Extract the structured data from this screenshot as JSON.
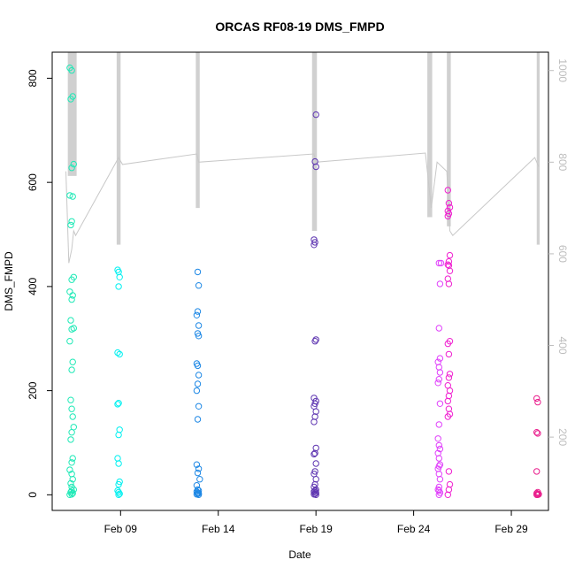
{
  "chart_data": {
    "type": "scatter",
    "title": "ORCAS RF08-19 DMS_FMPD",
    "xlabel": "Date",
    "ylabel": "DMS_FMPD",
    "x_ticks": [
      "Feb 09",
      "Feb 14",
      "Feb 19",
      "Feb 24",
      "Feb 29"
    ],
    "x_tick_days": [
      9,
      14,
      19,
      24,
      29
    ],
    "xlim_days": [
      5.5,
      30.9
    ],
    "y_ticks": [
      0,
      200,
      400,
      600,
      800
    ],
    "ylim": [
      -30,
      850
    ],
    "y2_ticks": [
      200,
      400,
      600,
      800,
      1000
    ],
    "y2_range_at_ylim": [
      40,
      1040
    ],
    "colors": {
      "axis": "#000000",
      "secondary_axis": "#bdbdbd",
      "trace": "#c8c8c8"
    },
    "secondary_trace": {
      "days": [
        6.2,
        6.35,
        6.5,
        6.6,
        6.7,
        8.9,
        9.1,
        12.9,
        13.0,
        18.9,
        19.0,
        24.6,
        24.9,
        25.2,
        25.7,
        25.85,
        26.0,
        30.2,
        30.4
      ],
      "values": [
        780,
        580,
        610,
        650,
        640,
        810,
        795,
        818,
        800,
        818,
        800,
        820,
        700,
        800,
        780,
        650,
        640,
        810,
        790
      ]
    },
    "flight_tracks": [
      {
        "day_start": 6.3,
        "day_end": 6.75,
        "top": 40,
        "bottom": 770
      },
      {
        "day_start": 8.8,
        "day_end": 9.0,
        "top": 40,
        "bottom": 620
      },
      {
        "day_start": 12.85,
        "day_end": 13.05,
        "top": 40,
        "bottom": 700
      },
      {
        "day_start": 18.8,
        "day_end": 19.05,
        "top": 40,
        "bottom": 650
      },
      {
        "day_start": 24.7,
        "day_end": 24.95,
        "top": 40,
        "bottom": 680
      },
      {
        "day_start": 25.7,
        "day_end": 25.9,
        "top": 40,
        "bottom": 660
      },
      {
        "day_start": 30.3,
        "day_end": 30.45,
        "top": 40,
        "bottom": 620
      }
    ],
    "series": [
      {
        "color": "#1de9b6",
        "x": [
          6.4,
          6.5,
          6.55,
          6.45,
          6.6,
          6.5,
          6.4,
          6.55,
          6.5,
          6.45,
          6.6,
          6.5,
          6.4,
          6.55,
          6.5,
          6.45,
          6.6,
          6.5,
          6.4,
          6.55,
          6.5,
          6.45,
          6.5,
          6.55,
          6.6,
          6.5,
          6.45,
          6.55,
          6.5,
          6.4,
          6.5,
          6.55,
          6.45,
          6.5,
          6.6,
          6.5,
          6.45,
          6.55,
          6.5,
          6.4
        ],
        "y": [
          820,
          815,
          765,
          760,
          635,
          628,
          575,
          573,
          525,
          518,
          418,
          413,
          390,
          383,
          375,
          335,
          320,
          318,
          295,
          255,
          240,
          182,
          165,
          150,
          130,
          120,
          106,
          70,
          62,
          48,
          40,
          30,
          22,
          15,
          10,
          8,
          5,
          3,
          1,
          0
        ]
      },
      {
        "color": "#00f0f0",
        "x": [
          8.85,
          8.9,
          8.95,
          8.9,
          8.85,
          8.95,
          8.9,
          8.85,
          8.95,
          8.9,
          8.85,
          8.9,
          8.95,
          8.9,
          8.85,
          8.9,
          8.95,
          8.9
        ],
        "y": [
          432,
          428,
          418,
          400,
          273,
          270,
          176,
          174,
          125,
          115,
          70,
          60,
          25,
          20,
          8,
          5,
          2,
          0
        ]
      },
      {
        "color": "#1e88e5",
        "x": [
          12.95,
          13.0,
          12.95,
          12.9,
          13.0,
          12.95,
          13.0,
          12.9,
          12.95,
          13.0,
          12.95,
          12.9,
          13.0,
          12.95,
          12.9,
          13.0,
          12.95,
          13.05,
          12.9,
          12.95,
          13.0,
          12.9,
          12.95,
          13.0,
          12.95,
          12.9,
          13.0
        ],
        "y": [
          428,
          402,
          352,
          345,
          325,
          310,
          305,
          252,
          248,
          230,
          213,
          200,
          170,
          145,
          58,
          50,
          42,
          30,
          18,
          10,
          8,
          6,
          4,
          3,
          2,
          1,
          0
        ]
      },
      {
        "color": "#5e35b1",
        "x": [
          19.0,
          18.95,
          19.0,
          18.9,
          18.95,
          18.9,
          19.0,
          18.95,
          18.9,
          19.0,
          18.95,
          18.9,
          19.0,
          18.95,
          18.9,
          19.0,
          18.95,
          18.9,
          19.0,
          18.95,
          18.9,
          19.0,
          18.95,
          18.9,
          19.0,
          18.95,
          18.9,
          19.0,
          18.95,
          18.9,
          19.0
        ],
        "y": [
          730,
          640,
          630,
          490,
          485,
          480,
          298,
          295,
          186,
          180,
          175,
          170,
          160,
          150,
          140,
          90,
          80,
          78,
          60,
          45,
          40,
          30,
          20,
          15,
          10,
          8,
          6,
          4,
          2,
          1,
          0
        ]
      },
      {
        "color": "#e040fb",
        "x": [
          25.3,
          25.4,
          25.35,
          25.3,
          25.35,
          25.25,
          25.3,
          25.35,
          25.3,
          25.25,
          25.35,
          25.3,
          25.25,
          25.3,
          25.35,
          25.25,
          25.3,
          25.35,
          25.3,
          25.25,
          25.3,
          25.35,
          25.3,
          25.25,
          25.3,
          25.35,
          25.3
        ],
        "y": [
          445,
          445,
          405,
          320,
          262,
          255,
          245,
          235,
          222,
          215,
          175,
          135,
          108,
          95,
          88,
          80,
          70,
          58,
          55,
          50,
          40,
          30,
          15,
          10,
          8,
          4,
          0
        ]
      },
      {
        "color": "#f020d0",
        "x": [
          25.75,
          25.8,
          25.85,
          25.75,
          25.8,
          25.75,
          25.85,
          25.8,
          25.75,
          25.8,
          25.85,
          25.75,
          25.8,
          25.85,
          25.75,
          25.8,
          25.85,
          25.8,
          25.75,
          25.85,
          25.8,
          25.75,
          25.8,
          25.85,
          25.75,
          25.8,
          25.85,
          25.8,
          25.75
        ],
        "y": [
          585,
          560,
          552,
          545,
          540,
          535,
          460,
          448,
          442,
          440,
          430,
          415,
          405,
          295,
          290,
          270,
          232,
          225,
          210,
          200,
          190,
          180,
          165,
          155,
          150,
          45,
          20,
          10,
          0
        ]
      },
      {
        "color": "#e91e8c",
        "x": [
          30.3,
          30.35,
          30.3,
          30.35,
          30.3,
          30.35,
          30.3,
          30.35,
          30.4,
          30.3,
          30.35
        ],
        "y": [
          185,
          178,
          120,
          118,
          45,
          5,
          3,
          2,
          1,
          0,
          0
        ]
      }
    ]
  }
}
